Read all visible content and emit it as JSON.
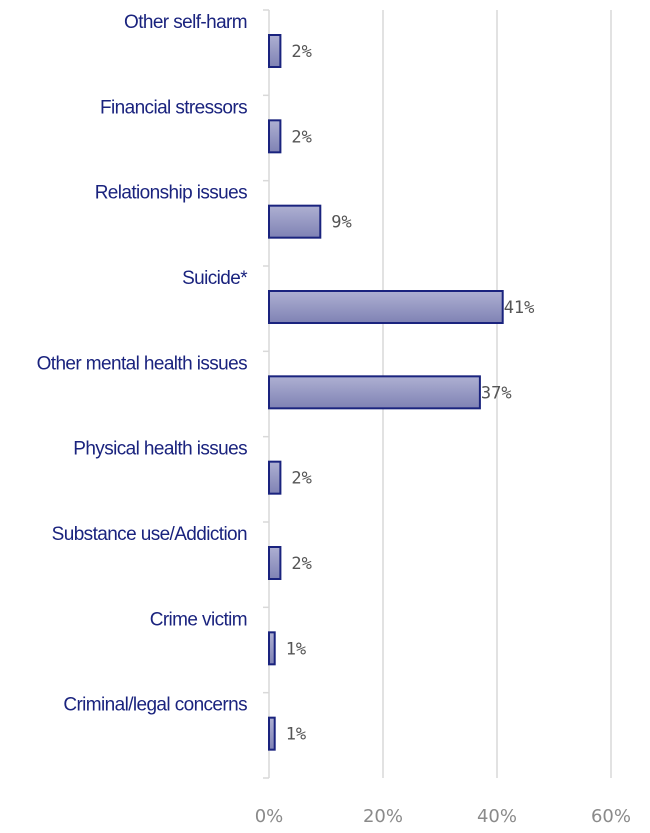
{
  "chart_data": {
    "type": "bar",
    "orientation": "horizontal",
    "categories": [
      "Other self-harm",
      "Financial stressors",
      "Relationship issues",
      "Suicide*",
      "Other mental health issues",
      "Physical health issues",
      "Substance use/Addiction",
      "Crime victim",
      "Criminal/legal concerns"
    ],
    "values": [
      2,
      2,
      9,
      41,
      37,
      2,
      2,
      1,
      1
    ],
    "value_labels": [
      "2%",
      "2%",
      "9%",
      "41%",
      "37%",
      "2%",
      "2%",
      "1%",
      "1%"
    ],
    "x_ticks": [
      "0%",
      "20%",
      "40%",
      "60%"
    ],
    "x_tick_values": [
      0,
      20,
      40,
      60
    ],
    "xlim": [
      0,
      60
    ],
    "grid": true,
    "legend": "none",
    "colors": {
      "bar_fill_top": "#aeb0d2",
      "bar_fill_bottom": "#7f82b4",
      "bar_stroke": "#1a237e",
      "category_text": "#1a237e",
      "value_text": "#555555",
      "tick_text": "#8a8a8a",
      "grid": "#d9d9d9"
    }
  }
}
